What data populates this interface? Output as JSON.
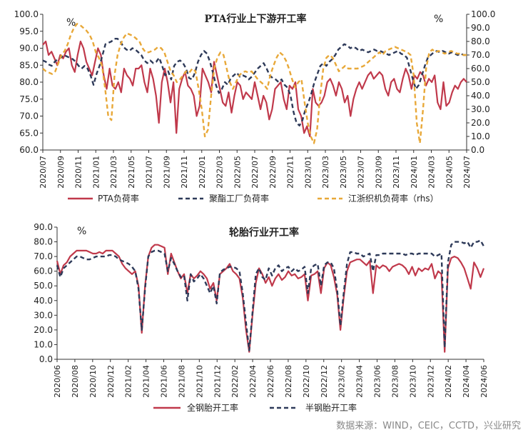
{
  "source": "数据来源：WIND，CEIC，CCTD，兴业研究",
  "chart_data": [
    {
      "type": "line",
      "title": "PTA行业上下游开工率",
      "y_unit_left": "%",
      "y_unit_right": "%",
      "ylim_left": [
        60,
        100
      ],
      "ylim_right": [
        0,
        100
      ],
      "yticks_left": [
        "60.0",
        "65.0",
        "70.0",
        "75.0",
        "80.0",
        "85.0",
        "90.0",
        "95.0",
        "100.0"
      ],
      "yticks_right": [
        "0.0",
        "10.0",
        "20.0",
        "30.0",
        "40.0",
        "50.0",
        "60.0",
        "70.0",
        "80.0",
        "90.0",
        "100.0"
      ],
      "x_start": "2020-07",
      "x_end": "2024-07",
      "x_ticks": [
        "2020/07",
        "2020/09",
        "2020/11",
        "2021/01",
        "2021/03",
        "2021/05",
        "2021/07",
        "2021/09",
        "2021/11",
        "2022/01",
        "2022/03",
        "2022/05",
        "2022/07",
        "2022/09",
        "2022/11",
        "2023/01",
        "2023/03",
        "2023/05",
        "2023/07",
        "2023/09",
        "2023/11",
        "2024/01",
        "2024/03",
        "2024/05",
        "2024/07"
      ],
      "legend_position": "bottom",
      "series": [
        {
          "name": "PTA负荷率",
          "axis": "left",
          "color": "#c0394b",
          "dash": "solid",
          "values": [
            91,
            92,
            88,
            89,
            87,
            85,
            88,
            87,
            89,
            90,
            85,
            83,
            88,
            92,
            90,
            86,
            84,
            82,
            86,
            90,
            88,
            82,
            78,
            84,
            79,
            78,
            80,
            77,
            84,
            82,
            81,
            79,
            84,
            84,
            85,
            80,
            77,
            84,
            81,
            76,
            68,
            80,
            84,
            80,
            74,
            80,
            65,
            78,
            81,
            83,
            79,
            78,
            76,
            70,
            73,
            84,
            82,
            80,
            77,
            86,
            82,
            78,
            74,
            73,
            77,
            71,
            76,
            80,
            79,
            75,
            77,
            76,
            75,
            80,
            76,
            72,
            76,
            74,
            69,
            72,
            78,
            79,
            80,
            75,
            72,
            79,
            78,
            80,
            72,
            70,
            65,
            67,
            64,
            78,
            74,
            73,
            74,
            76,
            80,
            81,
            79,
            76,
            80,
            78,
            74,
            76,
            70,
            75,
            78,
            80,
            78,
            80,
            82,
            83,
            81,
            82,
            83,
            82,
            78,
            76,
            80,
            81,
            78,
            77,
            81,
            84,
            82,
            78,
            82,
            81,
            83,
            82,
            79,
            81,
            80,
            82,
            74,
            72,
            80,
            73,
            74,
            77,
            79,
            78,
            80,
            81,
            80
          ]
        },
        {
          "name": "聚酯工厂负荷率",
          "axis": "right",
          "color": "#2e3a59",
          "dash": "dashed",
          "values": [
            66,
            65,
            63,
            62,
            65,
            67,
            68,
            70,
            69,
            68,
            67,
            65,
            62,
            60,
            62,
            60,
            55,
            48,
            56,
            62,
            70,
            78,
            79,
            80,
            82,
            82,
            80,
            76,
            74,
            73,
            75,
            74,
            72,
            70,
            66,
            64,
            66,
            64,
            65,
            68,
            62,
            55,
            58,
            52,
            62,
            65,
            66,
            64,
            60,
            53,
            52,
            57,
            65,
            70,
            73,
            71,
            65,
            57,
            48,
            42,
            45,
            50,
            48,
            53,
            55,
            57,
            54,
            55,
            54,
            52,
            54,
            57,
            60,
            62,
            64,
            60,
            55,
            53,
            52,
            50,
            52,
            48,
            46,
            40,
            28,
            20,
            18,
            22,
            30,
            35,
            42,
            50,
            56,
            62,
            64,
            62,
            65,
            67,
            70,
            74,
            76,
            78,
            77,
            75,
            76,
            75,
            73,
            74,
            73,
            72,
            73,
            74,
            73,
            73,
            72,
            71,
            70,
            71,
            72,
            73,
            71,
            70,
            68,
            60,
            52,
            45,
            48,
            55,
            62,
            68,
            70,
            72,
            73,
            72,
            73,
            72,
            71,
            72,
            71,
            70,
            71,
            70,
            70
          ]
        },
        {
          "name": "江浙织机负荷率（rhs）",
          "axis": "right",
          "color": "#e8a838",
          "dash": "dashed",
          "values": [
            60,
            58,
            57,
            56,
            58,
            64,
            70,
            73,
            78,
            85,
            90,
            93,
            92,
            90,
            88,
            85,
            80,
            72,
            68,
            62,
            45,
            25,
            22,
            55,
            70,
            78,
            83,
            86,
            85,
            84,
            82,
            80,
            75,
            72,
            72,
            73,
            74,
            76,
            75,
            72,
            65,
            58,
            55,
            50,
            52,
            55,
            58,
            57,
            60,
            58,
            45,
            30,
            10,
            15,
            40,
            60,
            68,
            72,
            70,
            60,
            50,
            45,
            50,
            55,
            57,
            58,
            57,
            58,
            55,
            52,
            50,
            48,
            45,
            55,
            62,
            68,
            72,
            70,
            66,
            60,
            52,
            46,
            50,
            52,
            35,
            20,
            10,
            5,
            15,
            40,
            60,
            68,
            70,
            68,
            63,
            58,
            60,
            62,
            60,
            60,
            60,
            60,
            61,
            62,
            64,
            66,
            68,
            70,
            72,
            70,
            73,
            74,
            75,
            76,
            75,
            74,
            73,
            72,
            70,
            55,
            20,
            5,
            30,
            60,
            72,
            74,
            72,
            73,
            72,
            71,
            72,
            73,
            72,
            71,
            71,
            70,
            70
          ]
        }
      ]
    },
    {
      "type": "line",
      "title": "轮胎行业开工率",
      "y_unit_left": "%",
      "ylim_left": [
        0,
        90
      ],
      "yticks_left": [
        "0.0",
        "10.0",
        "20.0",
        "30.0",
        "40.0",
        "50.0",
        "60.0",
        "70.0",
        "80.0",
        "90.0"
      ],
      "x_start": "2020-06",
      "x_end": "2024-07",
      "x_ticks": [
        "2020/06",
        "2020/08",
        "2020/10",
        "2020/12",
        "2021/02",
        "2021/04",
        "2021/06",
        "2021/08",
        "2021/10",
        "2021/12",
        "2022/02",
        "2022/04",
        "2022/06",
        "2022/08",
        "2022/10",
        "2022/12",
        "2023/02",
        "2023/04",
        "2023/06",
        "2023/08",
        "2023/10",
        "2023/12",
        "2024/02",
        "2024/04",
        "2024/06"
      ],
      "legend_position": "bottom",
      "series": [
        {
          "name": "全钢胎开工率",
          "color": "#c0394b",
          "dash": "solid",
          "values": [
            67,
            58,
            64,
            66,
            70,
            72,
            74,
            74,
            74,
            74,
            73,
            72,
            72,
            73,
            72,
            74,
            74,
            74,
            72,
            70,
            65,
            62,
            60,
            58,
            60,
            50,
            18,
            50,
            70,
            76,
            78,
            78,
            77,
            76,
            58,
            72,
            66,
            60,
            55,
            58,
            45,
            58,
            55,
            57,
            60,
            58,
            55,
            48,
            52,
            40,
            58,
            60,
            62,
            65,
            60,
            58,
            55,
            42,
            20,
            5,
            30,
            52,
            62,
            58,
            52,
            56,
            50,
            55,
            58,
            54,
            56,
            60,
            57,
            58,
            55,
            56,
            58,
            40,
            57,
            58,
            60,
            45,
            62,
            66,
            64,
            56,
            44,
            20,
            42,
            60,
            66,
            67,
            68,
            68,
            66,
            64,
            67,
            45,
            64,
            62,
            64,
            63,
            60,
            63,
            64,
            65,
            64,
            62,
            58,
            63,
            57,
            62,
            60,
            62,
            61,
            65,
            55,
            60,
            58,
            5,
            62,
            69,
            70,
            69,
            66,
            62,
            55,
            48,
            66,
            62,
            56,
            62
          ]
        },
        {
          "name": "半钢胎开工率",
          "color": "#2e3a59",
          "dash": "dashed",
          "values": [
            64,
            56,
            62,
            64,
            66,
            68,
            70,
            70,
            69,
            68,
            68,
            69,
            70,
            70,
            70,
            70,
            71,
            71,
            70,
            68,
            67,
            66,
            65,
            63,
            60,
            48,
            20,
            48,
            70,
            73,
            74,
            74,
            73,
            72,
            60,
            69,
            65,
            60,
            56,
            57,
            40,
            58,
            53,
            55,
            58,
            55,
            50,
            45,
            50,
            38,
            59,
            61,
            62,
            63,
            63,
            62,
            60,
            45,
            25,
            6,
            32,
            58,
            62,
            56,
            54,
            62,
            57,
            62,
            64,
            60,
            62,
            63,
            60,
            62,
            60,
            61,
            63,
            45,
            62,
            64,
            65,
            50,
            64,
            66,
            66,
            62,
            47,
            23,
            45,
            65,
            73,
            73,
            72,
            72,
            70,
            71,
            72,
            60,
            71,
            71,
            72,
            72,
            72,
            72,
            72,
            72,
            72,
            71,
            72,
            72,
            71,
            72,
            72,
            72,
            72,
            72,
            70,
            71,
            72,
            8,
            66,
            78,
            80,
            80,
            80,
            79,
            80,
            76,
            80,
            80,
            81,
            77
          ]
        }
      ]
    }
  ]
}
